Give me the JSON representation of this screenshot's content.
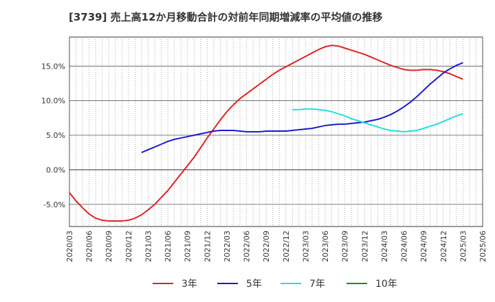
{
  "chart_data": {
    "type": "line",
    "title": "[3739]  売上高12か月移動合計の対前年同期増減率の平均値の推移",
    "xlabel": "",
    "ylabel": "",
    "x_ticks": [
      "2020/03",
      "2020/06",
      "2020/09",
      "2020/12",
      "2021/03",
      "2021/06",
      "2021/09",
      "2021/12",
      "2022/03",
      "2022/06",
      "2022/09",
      "2022/12",
      "2023/03",
      "2023/06",
      "2023/09",
      "2023/12",
      "2024/03",
      "2024/06",
      "2024/09",
      "2024/12",
      "2025/03",
      "2025/06"
    ],
    "y_ticks": [
      "-5.0%",
      "0.0%",
      "5.0%",
      "10.0%",
      "15.0%"
    ],
    "ylim": [
      -8.2,
      19.2
    ],
    "grid": true,
    "legend_position": "bottom",
    "series": [
      {
        "name": "3年",
        "color": "#dd2222",
        "points": [
          [
            "2020/03",
            -3.3
          ],
          [
            "2020/04",
            -4.5
          ],
          [
            "2020/05",
            -5.5
          ],
          [
            "2020/06",
            -6.4
          ],
          [
            "2020/07",
            -7.0
          ],
          [
            "2020/08",
            -7.3
          ],
          [
            "2020/09",
            -7.4
          ],
          [
            "2020/10",
            -7.4
          ],
          [
            "2020/11",
            -7.4
          ],
          [
            "2020/12",
            -7.3
          ],
          [
            "2021/01",
            -7.0
          ],
          [
            "2021/02",
            -6.5
          ],
          [
            "2021/03",
            -5.8
          ],
          [
            "2021/04",
            -5.0
          ],
          [
            "2021/05",
            -4.0
          ],
          [
            "2021/06",
            -3.0
          ],
          [
            "2021/07",
            -1.8
          ],
          [
            "2021/08",
            -0.6
          ],
          [
            "2021/09",
            0.6
          ],
          [
            "2021/10",
            1.8
          ],
          [
            "2021/11",
            3.2
          ],
          [
            "2021/12",
            4.6
          ],
          [
            "2022/01",
            5.9
          ],
          [
            "2022/02",
            7.2
          ],
          [
            "2022/03",
            8.4
          ],
          [
            "2022/04",
            9.4
          ],
          [
            "2022/05",
            10.3
          ],
          [
            "2022/06",
            11.0
          ],
          [
            "2022/07",
            11.7
          ],
          [
            "2022/08",
            12.4
          ],
          [
            "2022/09",
            13.1
          ],
          [
            "2022/10",
            13.8
          ],
          [
            "2022/11",
            14.4
          ],
          [
            "2022/12",
            14.9
          ],
          [
            "2023/01",
            15.4
          ],
          [
            "2023/02",
            15.9
          ],
          [
            "2023/03",
            16.4
          ],
          [
            "2023/04",
            16.9
          ],
          [
            "2023/05",
            17.4
          ],
          [
            "2023/06",
            17.8
          ],
          [
            "2023/07",
            18.0
          ],
          [
            "2023/08",
            17.9
          ],
          [
            "2023/09",
            17.6
          ],
          [
            "2023/10",
            17.3
          ],
          [
            "2023/11",
            17.0
          ],
          [
            "2023/12",
            16.7
          ],
          [
            "2024/01",
            16.3
          ],
          [
            "2024/02",
            15.9
          ],
          [
            "2024/03",
            15.5
          ],
          [
            "2024/04",
            15.1
          ],
          [
            "2024/05",
            14.8
          ],
          [
            "2024/06",
            14.5
          ],
          [
            "2024/07",
            14.4
          ],
          [
            "2024/08",
            14.4
          ],
          [
            "2024/09",
            14.5
          ],
          [
            "2024/10",
            14.5
          ],
          [
            "2024/11",
            14.4
          ],
          [
            "2024/12",
            14.2
          ],
          [
            "2025/01",
            13.9
          ],
          [
            "2025/02",
            13.5
          ],
          [
            "2025/03",
            13.1
          ]
        ]
      },
      {
        "name": "5年",
        "color": "#1a1acc",
        "points": [
          [
            "2021/02",
            2.5
          ],
          [
            "2021/03",
            2.9
          ],
          [
            "2021/04",
            3.3
          ],
          [
            "2021/05",
            3.7
          ],
          [
            "2021/06",
            4.1
          ],
          [
            "2021/07",
            4.4
          ],
          [
            "2021/08",
            4.6
          ],
          [
            "2021/09",
            4.8
          ],
          [
            "2021/10",
            5.0
          ],
          [
            "2021/11",
            5.2
          ],
          [
            "2021/12",
            5.4
          ],
          [
            "2022/01",
            5.6
          ],
          [
            "2022/02",
            5.7
          ],
          [
            "2022/03",
            5.7
          ],
          [
            "2022/04",
            5.7
          ],
          [
            "2022/05",
            5.6
          ],
          [
            "2022/06",
            5.5
          ],
          [
            "2022/07",
            5.5
          ],
          [
            "2022/08",
            5.5
          ],
          [
            "2022/09",
            5.6
          ],
          [
            "2022/10",
            5.6
          ],
          [
            "2022/11",
            5.6
          ],
          [
            "2022/12",
            5.6
          ],
          [
            "2023/01",
            5.7
          ],
          [
            "2023/02",
            5.8
          ],
          [
            "2023/03",
            5.9
          ],
          [
            "2023/04",
            6.0
          ],
          [
            "2023/05",
            6.2
          ],
          [
            "2023/06",
            6.4
          ],
          [
            "2023/07",
            6.5
          ],
          [
            "2023/08",
            6.6
          ],
          [
            "2023/09",
            6.6
          ],
          [
            "2023/10",
            6.7
          ],
          [
            "2023/11",
            6.8
          ],
          [
            "2023/12",
            6.9
          ],
          [
            "2024/01",
            7.1
          ],
          [
            "2024/02",
            7.3
          ],
          [
            "2024/03",
            7.6
          ],
          [
            "2024/04",
            8.0
          ],
          [
            "2024/05",
            8.5
          ],
          [
            "2024/06",
            9.1
          ],
          [
            "2024/07",
            9.8
          ],
          [
            "2024/08",
            10.6
          ],
          [
            "2024/09",
            11.5
          ],
          [
            "2024/10",
            12.4
          ],
          [
            "2024/11",
            13.2
          ],
          [
            "2024/12",
            14.0
          ],
          [
            "2025/01",
            14.6
          ],
          [
            "2025/02",
            15.1
          ],
          [
            "2025/03",
            15.5
          ]
        ]
      },
      {
        "name": "7年",
        "color": "#22dddd",
        "points": [
          [
            "2023/01",
            8.7
          ],
          [
            "2023/02",
            8.7
          ],
          [
            "2023/03",
            8.8
          ],
          [
            "2023/04",
            8.8
          ],
          [
            "2023/05",
            8.7
          ],
          [
            "2023/06",
            8.6
          ],
          [
            "2023/07",
            8.4
          ],
          [
            "2023/08",
            8.1
          ],
          [
            "2023/09",
            7.8
          ],
          [
            "2023/10",
            7.4
          ],
          [
            "2023/11",
            7.1
          ],
          [
            "2023/12",
            6.8
          ],
          [
            "2024/01",
            6.5
          ],
          [
            "2024/02",
            6.2
          ],
          [
            "2024/03",
            5.9
          ],
          [
            "2024/04",
            5.7
          ],
          [
            "2024/05",
            5.6
          ],
          [
            "2024/06",
            5.5
          ],
          [
            "2024/07",
            5.6
          ],
          [
            "2024/08",
            5.7
          ],
          [
            "2024/09",
            6.0
          ],
          [
            "2024/10",
            6.3
          ],
          [
            "2024/11",
            6.6
          ],
          [
            "2024/12",
            7.0
          ],
          [
            "2025/01",
            7.4
          ],
          [
            "2025/02",
            7.8
          ],
          [
            "2025/03",
            8.1
          ]
        ]
      },
      {
        "name": "10年",
        "color": "#228b22",
        "points": []
      }
    ]
  }
}
